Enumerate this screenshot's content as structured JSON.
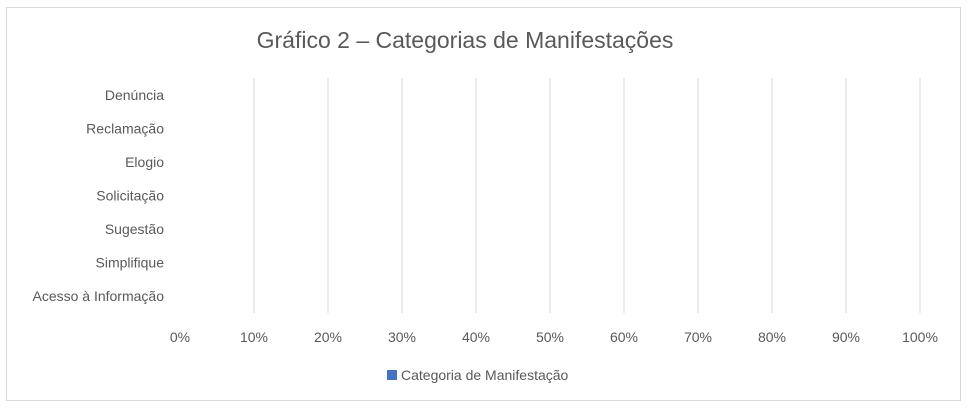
{
  "chart_data": {
    "type": "bar",
    "orientation": "horizontal",
    "title": "Gráfico 2 – Categorias de Manifestações",
    "categories": [
      "Denúncia",
      "Reclamação",
      "Elogio",
      "Solicitação",
      "Sugestão",
      "Simplifique",
      "Acesso à Informação"
    ],
    "series": [
      {
        "name": "Categoria de Manifestação",
        "values": [
          null,
          null,
          null,
          null,
          null,
          null,
          null
        ],
        "color": "#4472c4"
      }
    ],
    "x_ticks": [
      "0%",
      "10%",
      "20%",
      "30%",
      "40%",
      "50%",
      "60%",
      "70%",
      "80%",
      "90%",
      "100%"
    ],
    "xlim": [
      0,
      1
    ],
    "grid": true,
    "legend_position": "bottom"
  }
}
